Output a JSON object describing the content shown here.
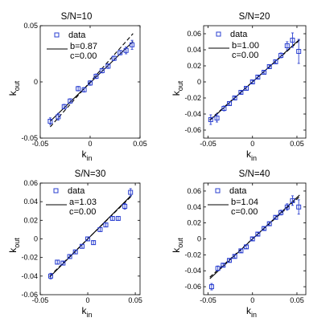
{
  "colors": {
    "marker": "#2a3fd0",
    "fit": "#000000",
    "axes": "#000000"
  },
  "chart_data": [
    {
      "type": "scatter",
      "title": "S/N=10",
      "xlabel": "k",
      "xlabel_sub": "in",
      "ylabel": "k",
      "ylabel_sub": "out",
      "xlim": [
        -0.05,
        0.05
      ],
      "ylim": [
        -0.05,
        0.05
      ],
      "xticks": [
        -0.05,
        0,
        0.05
      ],
      "xtick_labels": [
        "-0.05",
        "0",
        "0.05"
      ],
      "yticks": [
        -0.05,
        0,
        0.05
      ],
      "ytick_labels": [
        "-0.05",
        "0",
        "0.05"
      ],
      "grid": false,
      "legend_placement": "top-left",
      "legend": {
        "marker_label": "data",
        "line_labels": [
          "b=0.87",
          "c=0.00"
        ]
      },
      "series": [
        {
          "x": [
            -0.04,
            -0.032,
            -0.026,
            -0.02,
            -0.012,
            -0.006,
            0.0,
            0.006,
            0.012,
            0.018,
            0.024,
            0.03,
            0.036,
            0.042
          ],
          "y": [
            -0.035,
            -0.031,
            -0.022,
            -0.017,
            -0.006,
            -0.007,
            -0.001,
            0.005,
            0.01,
            0.014,
            0.021,
            0.026,
            0.028,
            0.033
          ],
          "err": [
            0.003,
            0.003,
            0.002,
            0.002,
            0.002,
            0.002,
            0.002,
            0.002,
            0.002,
            0.002,
            0.002,
            0.002,
            0.003,
            0.004
          ]
        }
      ],
      "fit_lines": [
        {
          "style": "solid",
          "x": [
            -0.04,
            0.043
          ],
          "y": [
            -0.035,
            0.036
          ]
        },
        {
          "style": "dashed",
          "x": [
            -0.04,
            0.043
          ],
          "y": [
            -0.04,
            0.043
          ]
        }
      ]
    },
    {
      "type": "scatter",
      "title": "S/N=20",
      "xlabel": "k",
      "xlabel_sub": "in",
      "ylabel": "k",
      "ylabel_sub": "out",
      "xlim": [
        -0.055,
        0.06
      ],
      "ylim": [
        -0.07,
        0.07
      ],
      "xticks": [
        -0.05,
        0,
        0.05
      ],
      "xtick_labels": [
        "-0.05",
        "0",
        "0.05"
      ],
      "yticks": [
        -0.06,
        -0.04,
        -0.02,
        0,
        0.02,
        0.04,
        0.06
      ],
      "ytick_labels": [
        "-0.06",
        "-0.04",
        "-0.02",
        "0",
        "0.02",
        "0.04",
        "0.06"
      ],
      "grid": false,
      "legend_placement": "top-left",
      "legend": {
        "marker_label": "data",
        "line_labels": [
          "b=1.00",
          "c=0.00"
        ]
      },
      "series": [
        {
          "x": [
            -0.047,
            -0.04,
            -0.032,
            -0.026,
            -0.02,
            -0.013,
            -0.007,
            0.0,
            0.006,
            0.013,
            0.019,
            0.026,
            0.032,
            0.039,
            0.045,
            0.052
          ],
          "y": [
            -0.047,
            -0.045,
            -0.033,
            -0.027,
            -0.02,
            -0.013,
            -0.008,
            0.0,
            0.006,
            0.012,
            0.019,
            0.025,
            0.033,
            0.045,
            0.052,
            0.038
          ],
          "err": [
            0.006,
            0.005,
            0.003,
            0.002,
            0.002,
            0.002,
            0.002,
            0.002,
            0.002,
            0.002,
            0.002,
            0.002,
            0.003,
            0.005,
            0.009,
            0.015
          ]
        }
      ],
      "fit_lines": [
        {
          "style": "solid",
          "x": [
            -0.048,
            0.053
          ],
          "y": [
            -0.048,
            0.053
          ]
        },
        {
          "style": "dashed",
          "x": [
            -0.048,
            0.053
          ],
          "y": [
            -0.047,
            0.052
          ]
        }
      ]
    },
    {
      "type": "scatter",
      "title": "S/N=30",
      "xlabel": "k",
      "xlabel_sub": "in",
      "ylabel": "k",
      "ylabel_sub": "out",
      "xlim": [
        -0.05,
        0.055
      ],
      "ylim": [
        -0.06,
        0.06
      ],
      "xticks": [
        -0.05,
        0,
        0.05
      ],
      "xtick_labels": [
        "-0.05",
        "0",
        "0.05"
      ],
      "yticks": [
        -0.06,
        -0.04,
        -0.02,
        0,
        0.02,
        0.04,
        0.06
      ],
      "ytick_labels": [
        "-0.06",
        "-0.04",
        "-0.02",
        "0",
        "0.02",
        "0.04",
        "0.06"
      ],
      "grid": false,
      "legend_placement": "top-left",
      "legend": {
        "marker_label": "data",
        "line_labels": [
          "a=1.03",
          "c=0.00"
        ]
      },
      "series": [
        {
          "x": [
            -0.039,
            -0.032,
            -0.026,
            -0.019,
            -0.013,
            -0.006,
            0.0,
            0.006,
            0.013,
            0.019,
            0.026,
            0.032,
            0.039,
            0.045
          ],
          "y": [
            -0.04,
            -0.025,
            -0.026,
            -0.019,
            -0.014,
            -0.008,
            0.0,
            -0.004,
            0.01,
            0.015,
            0.022,
            0.022,
            0.035,
            0.05
          ],
          "err": [
            0.003,
            0.002,
            0.002,
            0.002,
            0.002,
            0.002,
            0.002,
            0.002,
            0.002,
            0.002,
            0.002,
            0.002,
            0.003,
            0.004
          ]
        }
      ],
      "fit_lines": [
        {
          "style": "solid",
          "x": [
            -0.04,
            0.046
          ],
          "y": [
            -0.041,
            0.047
          ]
        },
        {
          "style": "dashed",
          "x": [
            -0.04,
            0.046
          ],
          "y": [
            -0.04,
            0.046
          ]
        }
      ]
    },
    {
      "type": "scatter",
      "title": "S/N=40",
      "xlabel": "k",
      "xlabel_sub": "in",
      "ylabel": "k",
      "ylabel_sub": "out",
      "xlim": [
        -0.055,
        0.06
      ],
      "ylim": [
        -0.07,
        0.07
      ],
      "xticks": [
        -0.05,
        0,
        0.05
      ],
      "xtick_labels": [
        "-0.05",
        "0",
        "0.05"
      ],
      "yticks": [
        -0.06,
        -0.04,
        -0.02,
        0,
        0.02,
        0.04,
        0.06
      ],
      "ytick_labels": [
        "-0.06",
        "-0.04",
        "-0.02",
        "0",
        "0.02",
        "0.04",
        "0.06"
      ],
      "grid": false,
      "legend_placement": "top-left",
      "legend": {
        "marker_label": "data",
        "line_labels": [
          "b=1.04",
          "c=0.00"
        ]
      },
      "series": [
        {
          "x": [
            -0.046,
            -0.039,
            -0.033,
            -0.026,
            -0.02,
            -0.013,
            -0.007,
            0.0,
            0.006,
            0.013,
            0.019,
            0.026,
            0.032,
            0.039,
            0.045,
            0.052
          ],
          "y": [
            -0.06,
            -0.037,
            -0.033,
            -0.027,
            -0.022,
            -0.015,
            -0.01,
            0.0,
            0.006,
            0.013,
            0.019,
            0.027,
            0.033,
            0.04,
            0.048,
            0.04
          ],
          "err": [
            0.004,
            0.003,
            0.002,
            0.002,
            0.002,
            0.002,
            0.002,
            0.002,
            0.002,
            0.002,
            0.002,
            0.002,
            0.003,
            0.004,
            0.006,
            0.009
          ]
        }
      ],
      "fit_lines": [
        {
          "style": "solid",
          "x": [
            -0.048,
            0.053
          ],
          "y": [
            -0.05,
            0.055
          ]
        },
        {
          "style": "dashed",
          "x": [
            -0.048,
            0.053
          ],
          "y": [
            -0.048,
            0.053
          ]
        }
      ]
    }
  ]
}
